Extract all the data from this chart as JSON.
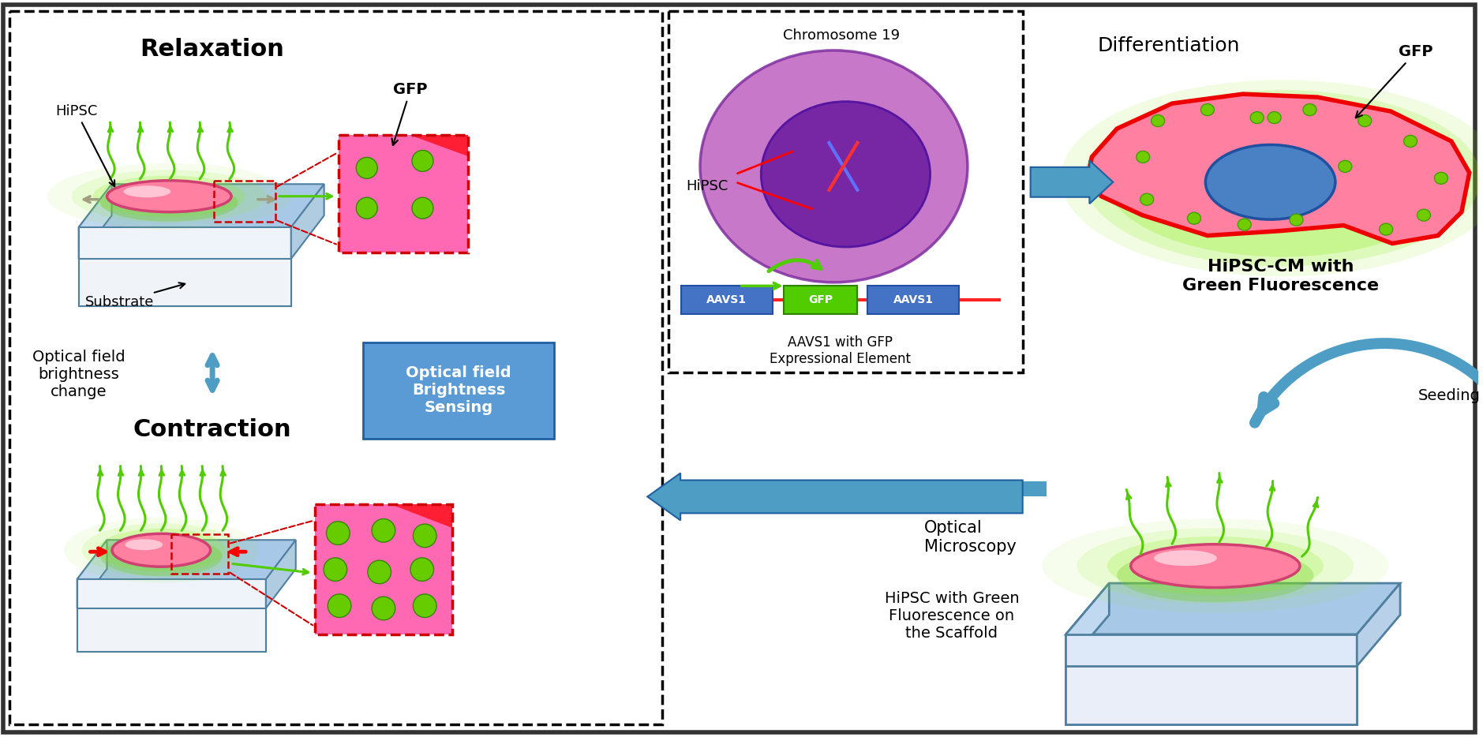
{
  "bg_color": "#ffffff",
  "blue_color": "#4E9DC4",
  "blue_dark": "#2E6FA0",
  "green_wave": "#50CC00",
  "pink_cell": "#FF80A0",
  "pink_cell_edge": "#C04060",
  "green_glow": "#90EE20",
  "green_dot": "#70CC00",
  "green_dot_edge": "#40A000",
  "red_color": "#FF0000",
  "purple_outer": "#BF60C0",
  "purple_inner": "#8030A0",
  "blue_nucleus": "#4A7FC0",
  "substrate_top": "#A8C8E8",
  "substrate_left": "#C0D8EE",
  "substrate_front": "#DDEAFA",
  "substrate_right": "#B0CCE0",
  "substrate_base_front": "#E8F0F8",
  "substrate_base_left": "#C8D8EA",
  "gray_arrow": "#A0A0A0",
  "obs_blue": "#5B9BD5",
  "labels": {
    "relaxation": "Relaxation",
    "hipsc": "HiPSC",
    "gfp": "GFP",
    "substrate": "Substrate",
    "optical_field": "Optical field\nbrightness\nchange",
    "optical_brightness_line1": "Optical field",
    "optical_brightness_line2": "Brightness",
    "optical_brightness_line3": "Sensing",
    "contraction": "Contraction",
    "chromosome19": "Chromosome 19",
    "hipsc_center": "HiPSC",
    "aavs1_label": "AAVS1 with GFP\nExpressional Element",
    "differentiation": "Differentiation",
    "gfp_diff": "GFP",
    "hipsc_cm": "HiPSC-CM with\nGreen Fluorescence",
    "seeding": "Seeding",
    "optical_micro": "Optical\nMicroscopy",
    "hipsc_scaffold": "HiPSC with Green\nFluorescence on\nthe Scaffold"
  }
}
